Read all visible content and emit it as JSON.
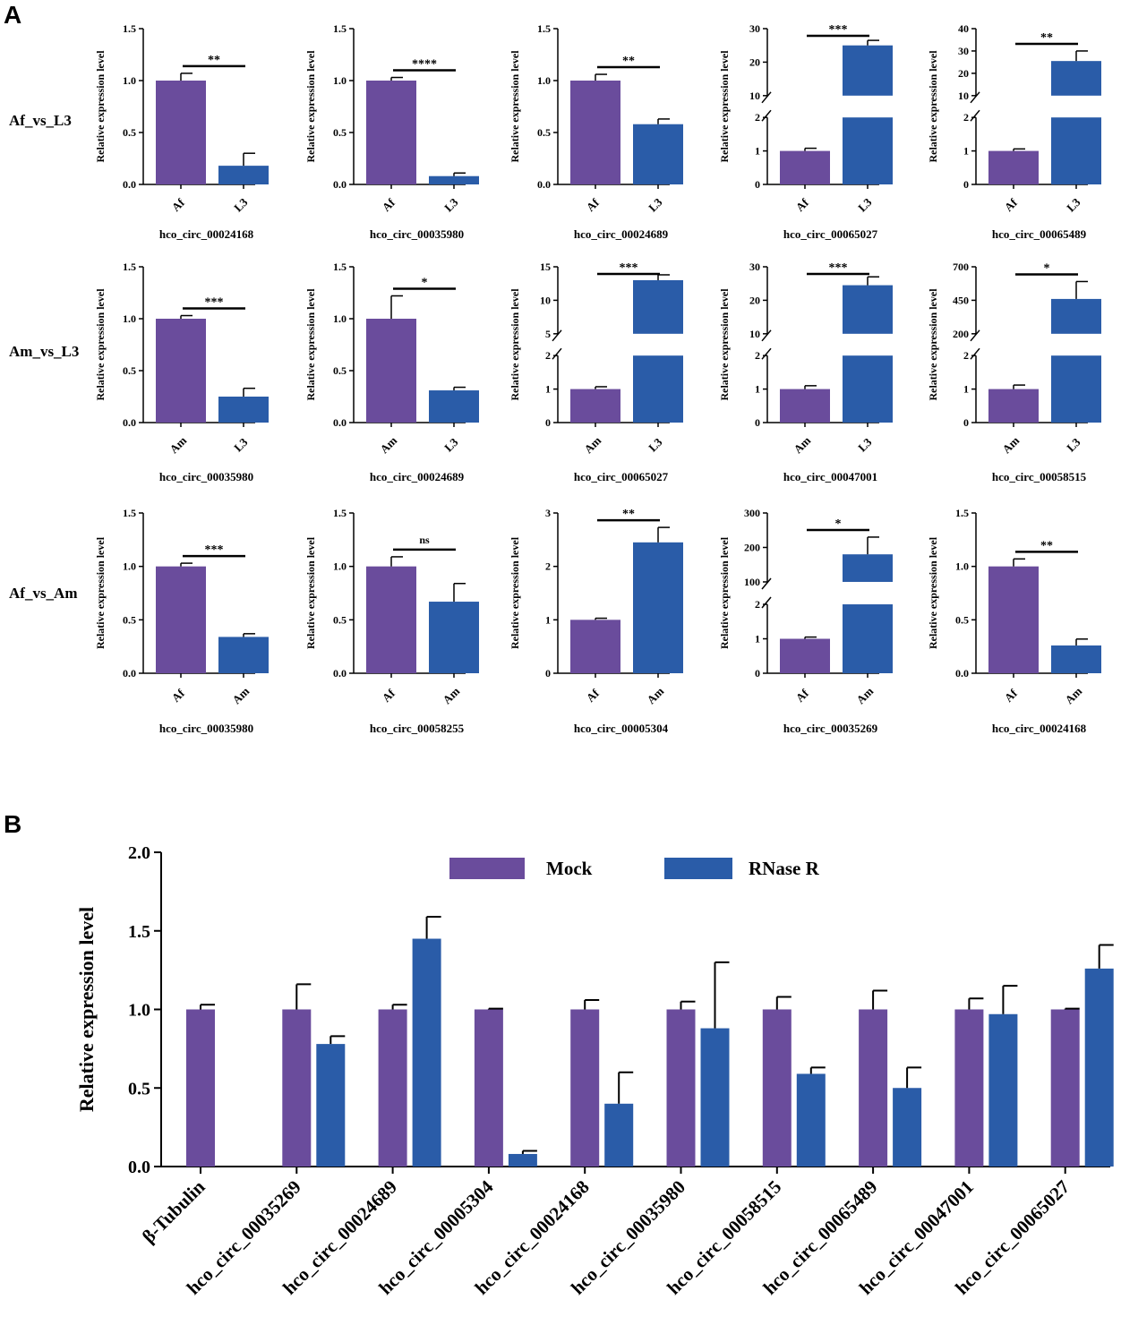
{
  "colors": {
    "purple": "#6a4c9c",
    "blue": "#2a5ca8",
    "axis": "#000000"
  },
  "panel_labels": [
    "A",
    "B"
  ],
  "chart_data": [
    {
      "panel": "A",
      "type": "bar",
      "row": 0,
      "col": 0,
      "row_label": "Af_vs_L3",
      "title": "hco_circ_00024168",
      "ylabel": "Relative expression level",
      "categories": [
        "Af",
        "L3"
      ],
      "values": [
        1.0,
        0.18
      ],
      "errors": [
        0.07,
        0.12
      ],
      "significance": "**",
      "ylim": [
        0,
        1.5
      ],
      "yticks": [
        0.0,
        0.5,
        1.0,
        1.5
      ]
    },
    {
      "panel": "A",
      "type": "bar",
      "row": 0,
      "col": 1,
      "row_label": "Af_vs_L3",
      "title": "hco_circ_00035980",
      "ylabel": "Relative expression level",
      "categories": [
        "Af",
        "L3"
      ],
      "values": [
        1.0,
        0.08
      ],
      "errors": [
        0.03,
        0.03
      ],
      "significance": "****",
      "ylim": [
        0,
        1.5
      ],
      "yticks": [
        0.0,
        0.5,
        1.0,
        1.5
      ]
    },
    {
      "panel": "A",
      "type": "bar",
      "row": 0,
      "col": 2,
      "row_label": "Af_vs_L3",
      "title": "hco_circ_00024689",
      "ylabel": "Relative expression level",
      "categories": [
        "Af",
        "L3"
      ],
      "values": [
        1.0,
        0.58
      ],
      "errors": [
        0.06,
        0.05
      ],
      "significance": "**",
      "ylim": [
        0,
        1.5
      ],
      "yticks": [
        0.0,
        0.5,
        1.0,
        1.5
      ]
    },
    {
      "panel": "A",
      "type": "bar",
      "row": 0,
      "col": 3,
      "row_label": "Af_vs_L3",
      "title": "hco_circ_00065027",
      "ylabel": "Relative expression level",
      "categories": [
        "Af",
        "L3"
      ],
      "values": [
        1.0,
        25.0
      ],
      "errors": [
        0.08,
        1.5
      ],
      "significance": "***",
      "broken": true,
      "lower_max": 2,
      "upper_range": [
        10,
        30
      ],
      "yticks_lower": [
        0,
        1,
        2
      ],
      "yticks_upper": [
        10,
        20,
        30
      ]
    },
    {
      "panel": "A",
      "type": "bar",
      "row": 0,
      "col": 4,
      "row_label": "Af_vs_L3",
      "title": "hco_circ_00065489",
      "ylabel": "Relative expression level",
      "categories": [
        "Af",
        "L3"
      ],
      "values": [
        1.0,
        25.5
      ],
      "errors": [
        0.06,
        4.5
      ],
      "significance": "**",
      "broken": true,
      "lower_max": 2,
      "upper_range": [
        10,
        40
      ],
      "yticks_lower": [
        0,
        1,
        2
      ],
      "yticks_upper": [
        10,
        20,
        30,
        40
      ]
    },
    {
      "panel": "A",
      "type": "bar",
      "row": 1,
      "col": 0,
      "row_label": "Am_vs_L3",
      "title": "hco_circ_00035980",
      "ylabel": "Relative expression level",
      "categories": [
        "Am",
        "L3"
      ],
      "values": [
        1.0,
        0.25
      ],
      "errors": [
        0.03,
        0.08
      ],
      "significance": "***",
      "ylim": [
        0,
        1.5
      ],
      "yticks": [
        0.0,
        0.5,
        1.0,
        1.5
      ]
    },
    {
      "panel": "A",
      "type": "bar",
      "row": 1,
      "col": 1,
      "row_label": "Am_vs_L3",
      "title": "hco_circ_00024689",
      "ylabel": "Relative expression level",
      "categories": [
        "Am",
        "L3"
      ],
      "values": [
        1.0,
        0.31
      ],
      "errors": [
        0.22,
        0.03
      ],
      "significance": "*",
      "ylim": [
        0,
        1.5
      ],
      "yticks": [
        0.0,
        0.5,
        1.0,
        1.5
      ]
    },
    {
      "panel": "A",
      "type": "bar",
      "row": 1,
      "col": 2,
      "row_label": "Am_vs_L3",
      "title": "hco_circ_00065027",
      "ylabel": "Relative expression level",
      "categories": [
        "Am",
        "L3"
      ],
      "values": [
        1.0,
        13.0
      ],
      "errors": [
        0.07,
        0.8
      ],
      "significance": "***",
      "broken": true,
      "lower_max": 2,
      "upper_range": [
        5,
        15
      ],
      "yticks_lower": [
        0,
        1,
        2
      ],
      "yticks_upper": [
        5,
        10,
        15
      ]
    },
    {
      "panel": "A",
      "type": "bar",
      "row": 1,
      "col": 3,
      "row_label": "Am_vs_L3",
      "title": "hco_circ_00047001",
      "ylabel": "Relative expression level",
      "categories": [
        "Am",
        "L3"
      ],
      "values": [
        1.0,
        24.5
      ],
      "errors": [
        0.1,
        2.5
      ],
      "significance": "***",
      "broken": true,
      "lower_max": 2,
      "upper_range": [
        10,
        30
      ],
      "yticks_lower": [
        0,
        1,
        2
      ],
      "yticks_upper": [
        10,
        20,
        30
      ]
    },
    {
      "panel": "A",
      "type": "bar",
      "row": 1,
      "col": 4,
      "row_label": "Am_vs_L3",
      "title": "hco_circ_00058515",
      "ylabel": "Relative expression level",
      "categories": [
        "Am",
        "L3"
      ],
      "values": [
        1.0,
        460
      ],
      "errors": [
        0.12,
        130
      ],
      "significance": "*",
      "broken": true,
      "lower_max": 2,
      "upper_range": [
        200,
        700
      ],
      "yticks_lower": [
        0,
        1,
        2
      ],
      "yticks_upper": [
        200,
        450,
        700
      ]
    },
    {
      "panel": "A",
      "type": "bar",
      "row": 2,
      "col": 0,
      "row_label": "Af_vs_Am",
      "title": "hco_circ_00035980",
      "ylabel": "Relative expression level",
      "categories": [
        "Af",
        "Am"
      ],
      "values": [
        1.0,
        0.34
      ],
      "errors": [
        0.03,
        0.03
      ],
      "significance": "***",
      "ylim": [
        0,
        1.5
      ],
      "yticks": [
        0.0,
        0.5,
        1.0,
        1.5
      ]
    },
    {
      "panel": "A",
      "type": "bar",
      "row": 2,
      "col": 1,
      "row_label": "Af_vs_Am",
      "title": "hco_circ_00058255",
      "ylabel": "Relative expression level",
      "categories": [
        "Af",
        "Am"
      ],
      "values": [
        1.0,
        0.67
      ],
      "errors": [
        0.09,
        0.17
      ],
      "significance": "ns",
      "ylim": [
        0,
        1.5
      ],
      "yticks": [
        0.0,
        0.5,
        1.0,
        1.5
      ]
    },
    {
      "panel": "A",
      "type": "bar",
      "row": 2,
      "col": 2,
      "row_label": "Af_vs_Am",
      "title": "hco_circ_00005304",
      "ylabel": "Relative expression level",
      "categories": [
        "Af",
        "Am"
      ],
      "values": [
        1.0,
        2.45
      ],
      "errors": [
        0.03,
        0.28
      ],
      "significance": "**",
      "ylim": [
        0,
        3
      ],
      "yticks": [
        0,
        1,
        2,
        3
      ]
    },
    {
      "panel": "A",
      "type": "bar",
      "row": 2,
      "col": 3,
      "row_label": "Af_vs_Am",
      "title": "hco_circ_00035269",
      "ylabel": "Relative expression level",
      "categories": [
        "Af",
        "Am"
      ],
      "values": [
        1.0,
        180
      ],
      "errors": [
        0.05,
        50
      ],
      "significance": "*",
      "broken": true,
      "lower_max": 2,
      "upper_range": [
        100,
        300
      ],
      "yticks_lower": [
        0,
        1,
        2
      ],
      "yticks_upper": [
        100,
        200,
        300
      ]
    },
    {
      "panel": "A",
      "type": "bar",
      "row": 2,
      "col": 4,
      "row_label": "Af_vs_Am",
      "title": "hco_circ_00024168",
      "ylabel": "Relative expression level",
      "categories": [
        "Af",
        "Am"
      ],
      "values": [
        1.0,
        0.26
      ],
      "errors": [
        0.07,
        0.06
      ],
      "significance": "**",
      "ylim": [
        0,
        1.5
      ],
      "yticks": [
        0.0,
        0.5,
        1.0,
        1.5
      ]
    },
    {
      "panel": "B",
      "type": "bar",
      "title": "",
      "xlabel": "",
      "ylabel": "Relative expression level",
      "ylim": [
        0,
        2.0
      ],
      "yticks": [
        0.0,
        0.5,
        1.0,
        1.5,
        2.0
      ],
      "legend": [
        "Mock",
        "RNase R"
      ],
      "legend_position": "top-center",
      "categories": [
        "β-Tubulin",
        "hco_circ_00035269",
        "hco_circ_00024689",
        "hco_circ_00005304",
        "hco_circ_00024168",
        "hco_circ_00035980",
        "hco_circ_00058515",
        "hco_circ_00065489",
        "hco_circ_00047001",
        "hco_circ_00065027"
      ],
      "series": [
        {
          "name": "Mock",
          "values": [
            1.0,
            1.0,
            1.0,
            1.0,
            1.0,
            1.0,
            1.0,
            1.0,
            1.0,
            1.0
          ],
          "errors": [
            0.03,
            0.16,
            0.03,
            0.005,
            0.06,
            0.05,
            0.08,
            0.12,
            0.07,
            0.005
          ]
        },
        {
          "name": "RNase R",
          "values": [
            null,
            0.78,
            1.45,
            0.08,
            0.4,
            0.88,
            0.59,
            0.5,
            0.97,
            1.26
          ],
          "errors": [
            null,
            0.05,
            0.14,
            0.02,
            0.2,
            0.42,
            0.04,
            0.13,
            0.18,
            0.15
          ]
        }
      ]
    }
  ]
}
